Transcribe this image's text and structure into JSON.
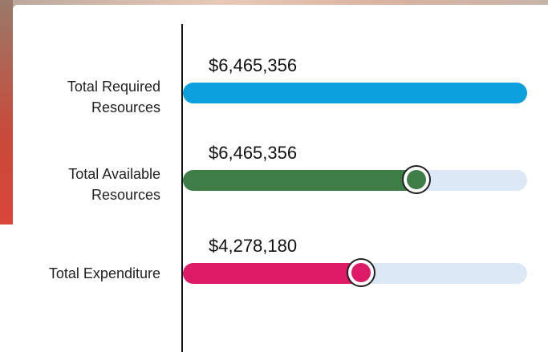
{
  "rows": [
    {
      "label": "Total Required Resources",
      "amount": "$6,465,356",
      "fill": 100,
      "color": "#0b9fdc",
      "knob": false
    },
    {
      "label": "Total Available Resources",
      "amount": "$6,465,356",
      "fill": 68,
      "color": "#3e7d46",
      "knob": true
    },
    {
      "label": "Total Expenditure",
      "amount": "$4,278,180",
      "fill": 52,
      "color": "#dc1a66",
      "knob": true
    }
  ]
}
